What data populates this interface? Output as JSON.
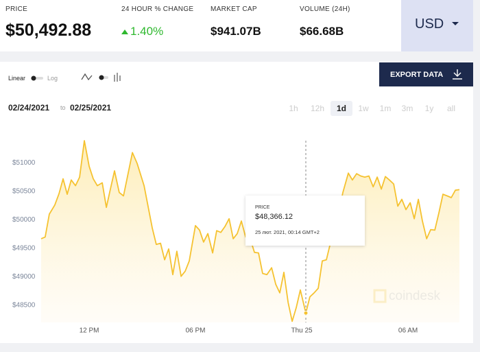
{
  "header": {
    "stats": [
      {
        "label": "PRICE",
        "value": "$50,492.88"
      },
      {
        "label": "24 HOUR % CHANGE",
        "value": "1.40%"
      },
      {
        "label": "MARKET CAP",
        "value": "$941.07B"
      },
      {
        "label": "VOLUME (24H)",
        "value": "$66.68B"
      }
    ],
    "currency": "USD"
  },
  "controls": {
    "scale_options": [
      "Linear",
      "Log"
    ],
    "export": "EXPORT DATA",
    "date_from": "02/24/2021",
    "date_sep": "to",
    "date_to": "02/25/2021",
    "ranges": [
      "1h",
      "12h",
      "1d",
      "1w",
      "1m",
      "3m",
      "1y",
      "all"
    ],
    "active_range": "1d"
  },
  "chart_data": {
    "type": "line",
    "color": "#f5c230",
    "x": [
      9.29,
      9.52,
      9.75,
      10.06,
      10.3,
      10.53,
      10.76,
      10.99,
      11.23,
      11.46,
      11.73,
      12.0,
      12.23,
      12.46,
      12.74,
      12.97,
      13.2,
      13.43,
      13.7,
      13.94,
      14.44,
      14.71,
      15.1,
      15.56,
      15.79,
      16.03,
      16.26,
      16.49,
      16.72,
      16.95,
      17.19,
      17.42,
      17.65,
      18.0,
      18.23,
      18.46,
      18.7,
      18.97,
      19.2,
      19.43,
      19.66,
      19.9,
      20.13,
      20.36,
      20.59,
      20.83,
      21.1,
      21.33,
      21.56,
      21.79,
      22.03,
      22.3,
      22.53,
      22.76,
      22.99,
      23.23,
      23.46,
      23.69,
      23.92,
      24.23,
      24.46,
      24.7,
      24.93,
      25.16,
      25.39,
      25.63,
      25.86,
      26.09,
      26.32,
      26.63,
      26.86,
      27.1,
      27.33,
      27.56,
      27.79,
      28.03,
      28.26,
      28.49,
      28.72,
      28.95,
      29.19,
      29.42,
      29.65,
      29.88,
      30.12,
      30.35,
      30.58,
      30.81,
      31.05,
      31.28,
      31.51,
      31.74,
      31.97,
      32.21,
      32.44,
      32.67,
      32.9
    ],
    "values": [
      49670,
      49700,
      50100,
      50260,
      50460,
      50720,
      50450,
      50700,
      50600,
      50750,
      51390,
      50940,
      50720,
      50600,
      50650,
      50220,
      50540,
      50860,
      50480,
      50420,
      51180,
      50990,
      50600,
      49860,
      49570,
      49590,
      49300,
      49490,
      49040,
      49450,
      49010,
      49100,
      49280,
      49900,
      49820,
      49610,
      49760,
      49420,
      49810,
      49780,
      49880,
      50020,
      49670,
      49760,
      49980,
      49700,
      49660,
      49430,
      49420,
      49060,
      49040,
      49160,
      48870,
      48720,
      49080,
      48550,
      48220,
      48460,
      48770,
      48366.12,
      48650,
      48720,
      48800,
      49280,
      49300,
      49610,
      49760,
      50120,
      50480,
      50820,
      50700,
      50810,
      50770,
      50750,
      50770,
      50580,
      50750,
      50540,
      50760,
      50700,
      50630,
      50240,
      50360,
      50180,
      50300,
      50020,
      50360,
      49980,
      49670,
      49830,
      49820,
      50120,
      50450,
      50420,
      50390,
      50520,
      50530
    ],
    "xlim": [
      9.29,
      32.9
    ],
    "xticks": [
      {
        "value": 12,
        "label": "12 PM"
      },
      {
        "value": 18,
        "label": "06 PM"
      },
      {
        "value": 24,
        "label": "Thu 25"
      },
      {
        "value": 30,
        "label": "06 AM"
      }
    ],
    "ylim": [
      48200,
      51570
    ],
    "yticks": [
      {
        "value": 48500,
        "label": "$48500"
      },
      {
        "value": 49000,
        "label": "$49000"
      },
      {
        "value": 49500,
        "label": "$49500"
      },
      {
        "value": 50000,
        "label": "$50000"
      },
      {
        "value": 50500,
        "label": "$50500"
      },
      {
        "value": 51000,
        "label": "$51000"
      }
    ],
    "grid": false,
    "tooltip": {
      "label": "PRICE",
      "value": "$48,366.12",
      "time": "25 лют. 2021, 00:14 GMT+2"
    },
    "watermark": "coindesk"
  }
}
